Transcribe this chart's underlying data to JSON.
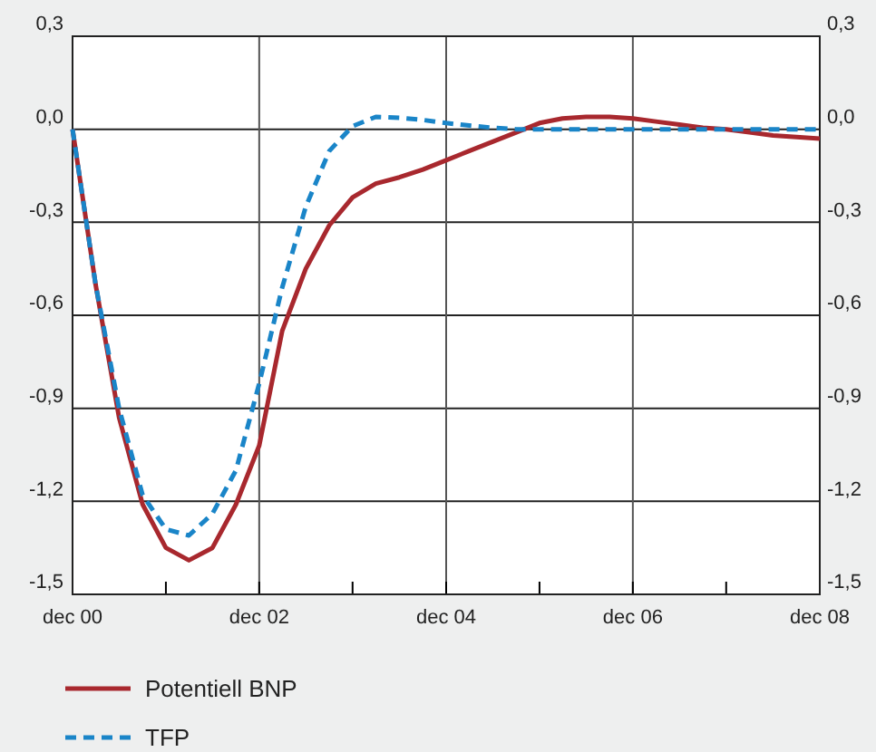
{
  "chart_data": {
    "type": "line",
    "x": [
      "2000-12",
      "2001-03",
      "2001-06",
      "2001-09",
      "2001-12",
      "2002-03",
      "2002-06",
      "2002-09",
      "2002-12",
      "2003-03",
      "2003-06",
      "2003-09",
      "2003-12",
      "2004-03",
      "2004-06",
      "2004-09",
      "2004-12",
      "2005-03",
      "2005-06",
      "2005-09",
      "2005-12",
      "2006-03",
      "2006-06",
      "2006-09",
      "2006-12",
      "2007-03",
      "2007-06",
      "2007-09",
      "2007-12",
      "2008-03",
      "2008-06",
      "2008-09",
      "2008-12"
    ],
    "series": [
      {
        "name": "Potentiell BNP",
        "color": "#a8282e",
        "line_style": "solid",
        "values": [
          0,
          -0.5,
          -0.93,
          -1.21,
          -1.35,
          -1.39,
          -1.35,
          -1.21,
          -1.02,
          -0.65,
          -0.45,
          -0.31,
          -0.22,
          -0.175,
          -0.155,
          -0.13,
          -0.1,
          -0.07,
          -0.04,
          -0.01,
          0.02,
          0.035,
          0.04,
          0.04,
          0.035,
          0.025,
          0.015,
          0.005,
          0,
          -0.01,
          -0.02,
          -0.025,
          -0.03
        ]
      },
      {
        "name": "TFP",
        "color": "#1a85c8",
        "line_style": "dashed",
        "values": [
          0,
          -0.5,
          -0.9,
          -1.18,
          -1.29,
          -1.31,
          -1.24,
          -1.1,
          -0.82,
          -0.51,
          -0.25,
          -0.07,
          0.01,
          0.04,
          0.037,
          0.03,
          0.02,
          0.012,
          0.005,
          0,
          0,
          0,
          0,
          0,
          0,
          0,
          0,
          0,
          0,
          0,
          0,
          0,
          0
        ]
      }
    ],
    "xlim": [
      "2000-12",
      "2008-12"
    ],
    "xticks": [
      {
        "value": "2000-12",
        "label": "dec 00"
      },
      {
        "value": "2001-12",
        "label": null
      },
      {
        "value": "2002-12",
        "label": "dec 02"
      },
      {
        "value": "2003-12",
        "label": null
      },
      {
        "value": "2004-12",
        "label": "dec 04"
      },
      {
        "value": "2005-12",
        "label": null
      },
      {
        "value": "2006-12",
        "label": "dec 06"
      },
      {
        "value": "2007-12",
        "label": null
      },
      {
        "value": "2008-12",
        "label": "dec 08"
      }
    ],
    "ylim": [
      -1.5,
      0.3
    ],
    "yticks": [
      {
        "value": 0.3,
        "label": "0,3"
      },
      {
        "value": 0,
        "label": "0,0"
      },
      {
        "value": -0.3,
        "label": "-0,3"
      },
      {
        "value": -0.6,
        "label": "-0,6"
      },
      {
        "value": -0.9,
        "label": "-0,9"
      },
      {
        "value": -1.2,
        "label": "-1,2"
      },
      {
        "value": -1.5,
        "label": "-1,5"
      }
    ],
    "y2lim": [
      -1.5,
      0.3
    ],
    "y2ticks": [
      {
        "value": 0.3,
        "label": "0,3"
      },
      {
        "value": 0,
        "label": "0,0"
      },
      {
        "value": -0.3,
        "label": "-0,3"
      },
      {
        "value": -0.6,
        "label": "-0,6"
      },
      {
        "value": -0.9,
        "label": "-0,9"
      },
      {
        "value": -1.2,
        "label": "-1,2"
      },
      {
        "value": -1.5,
        "label": "-1,5"
      }
    ],
    "grid": true,
    "legend": "bottom"
  }
}
